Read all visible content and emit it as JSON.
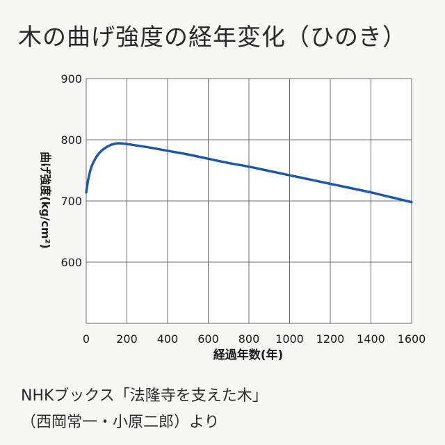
{
  "chart_data": {
    "type": "line",
    "title": "木の曲げ強度の経年変化（ひのき）",
    "xlabel": "経過年数(年)",
    "ylabel": "曲げ強度(kg/cm²)",
    "xlim": [
      0,
      1600
    ],
    "ylim": [
      500,
      900
    ],
    "x_ticks": [
      "0",
      "200",
      "400",
      "600",
      "800",
      "1000",
      "1200",
      "1400",
      "1600"
    ],
    "y_ticks": [
      "900",
      "800",
      "700",
      "600"
    ],
    "grid": true,
    "series": [
      {
        "color": "#1f57a8",
        "x": [
          0,
          10,
          25,
          50,
          75,
          100,
          125,
          150,
          175,
          200,
          300,
          400,
          500,
          600,
          700,
          800,
          900,
          1000,
          1100,
          1200,
          1300,
          1400,
          1500,
          1600
        ],
        "y": [
          714,
          735,
          755,
          772,
          782,
          788,
          792,
          794,
          794,
          793,
          788,
          782,
          776,
          769,
          762,
          756,
          749,
          742,
          735,
          728,
          721,
          714,
          706,
          698
        ]
      }
    ]
  },
  "source": {
    "line1": "NHKブックス「法隆寺を支えた木」",
    "line2": "（西岡常一・小原二郎）より"
  }
}
